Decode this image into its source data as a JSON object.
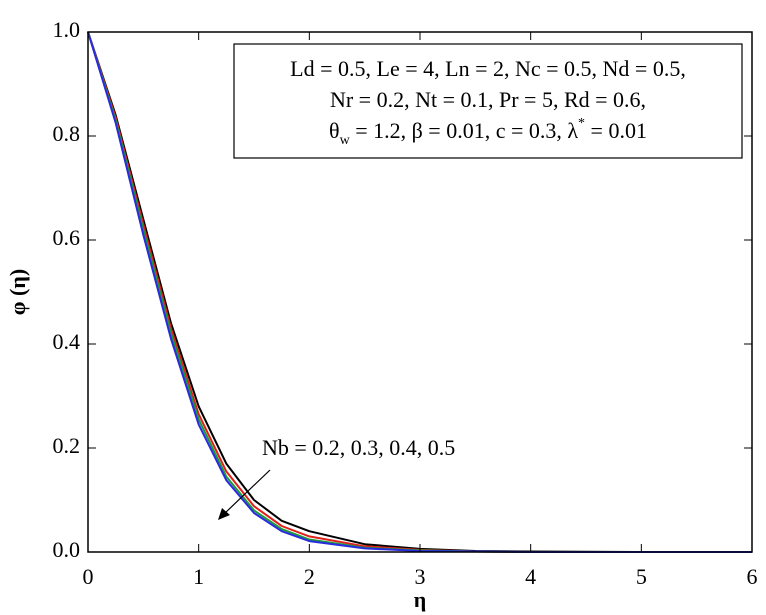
{
  "chart_data": {
    "type": "line",
    "xlabel": "η",
    "ylabel": "φ (η)",
    "x": [
      0,
      0.25,
      0.5,
      0.75,
      1,
      1.25,
      1.5,
      1.75,
      2,
      2.5,
      3,
      3.5,
      4,
      5,
      6
    ],
    "series": [
      {
        "color": "#000000",
        "values": [
          1,
          0.84,
          0.64,
          0.44,
          0.28,
          0.17,
          0.1,
          0.06,
          0.04,
          0.015,
          0.006,
          0.002,
          0.001,
          0,
          0
        ]
      },
      {
        "color": "#e0201a",
        "values": [
          1,
          0.835,
          0.63,
          0.43,
          0.265,
          0.155,
          0.088,
          0.05,
          0.03,
          0.011,
          0.004,
          0.001,
          0,
          0,
          0
        ]
      },
      {
        "color": "#1a9a3a",
        "values": [
          1,
          0.83,
          0.62,
          0.42,
          0.255,
          0.145,
          0.08,
          0.044,
          0.024,
          0.008,
          0.003,
          0.001,
          0,
          0,
          0
        ]
      },
      {
        "color": "#2a2ae0",
        "values": [
          1,
          0.825,
          0.61,
          0.41,
          0.245,
          0.138,
          0.075,
          0.04,
          0.021,
          0.007,
          0.002,
          0.001,
          0,
          0,
          0
        ]
      }
    ],
    "xlim": [
      0,
      6
    ],
    "xticks": [
      0,
      1,
      2,
      3,
      4,
      5,
      6
    ],
    "ylim": [
      0,
      1
    ],
    "yticks": [
      {
        "value": 0,
        "label": "0.0"
      },
      0.2,
      0.4,
      0.6,
      0.8,
      {
        "value": 1,
        "label": "1.0"
      }
    ],
    "annotation": "Nb = 0.2, 0.3, 0.4, 0.5",
    "parameters": {
      "line1": "Ld = 0.5, Le = 4, Ln = 2, Nc = 0.5, Nd = 0.5,",
      "line2": "Nr = 0.2, Nt = 0.1, Pr = 5, Rd = 0.6,",
      "line3": [
        "θ",
        "w",
        " = 1.2, β = 0.01, c = 0.3, λ",
        "*",
        " = 0.01"
      ]
    }
  }
}
